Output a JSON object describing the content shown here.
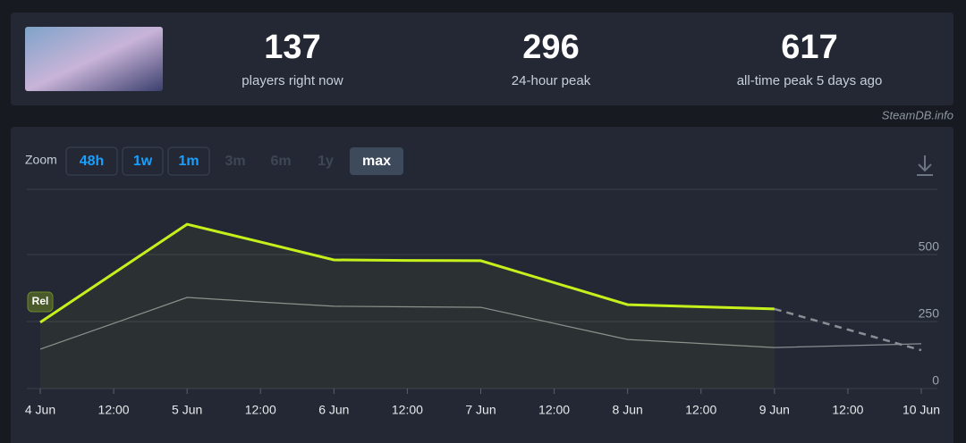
{
  "stats": [
    {
      "value": "137",
      "label": "players right now"
    },
    {
      "value": "296",
      "label": "24-hour peak"
    },
    {
      "value": "617",
      "label": "all-time peak 5 days ago"
    }
  ],
  "source": "SteamDB.info",
  "zoom": {
    "label": "Zoom",
    "options": [
      "48h",
      "1w",
      "1m",
      "3m",
      "6m",
      "1y",
      "max"
    ]
  },
  "chart_data": {
    "type": "line",
    "categories": [
      "4 Jun",
      "12:00",
      "5 Jun",
      "12:00",
      "6 Jun",
      "12:00",
      "7 Jun",
      "12:00",
      "8 Jun",
      "12:00",
      "9 Jun",
      "12:00",
      "10 Jun"
    ],
    "series": [
      {
        "color": "#c6f01c",
        "values": [
          247,
          430,
          613,
          547,
          480,
          478,
          477,
          395,
          313,
          305,
          297,
          null,
          null
        ]
      },
      {
        "color": "#8a8d93",
        "values": [
          147,
          243,
          340,
          323,
          307,
          305,
          303,
          243,
          183,
          168,
          153,
          160,
          167
        ]
      },
      {
        "color": "#8a8d93",
        "dashed": true,
        "values": [
          null,
          null,
          null,
          null,
          null,
          null,
          null,
          null,
          null,
          null,
          297,
          220,
          143
        ]
      }
    ],
    "annotations": [
      {
        "text": "Rel",
        "category": 0
      }
    ],
    "ylim": [
      0,
      750
    ],
    "yticks": [
      0,
      250,
      500
    ],
    "grid": true
  }
}
